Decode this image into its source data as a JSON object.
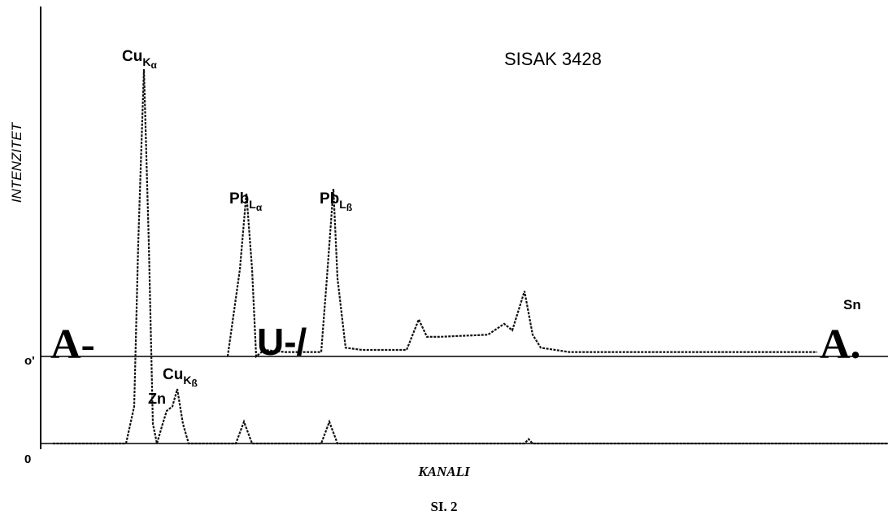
{
  "chart_data": {
    "type": "line",
    "title": "SISAK 3428",
    "ylabel": "INTENZITET",
    "xlabel": "KANALI",
    "caption": "SI. 2",
    "xlim": [
      0,
      1042
    ],
    "ylim": [
      0,
      100
    ],
    "yticks": [
      0,
      {
        "value": 20,
        "label": "o'"
      }
    ],
    "series": [
      {
        "color": "#111111",
        "x": [
          15,
          105,
          115,
          120,
          127,
          133,
          138,
          143,
          150,
          155,
          162,
          168,
          175,
          182,
          240,
          250,
          260,
          345,
          355,
          365,
          595,
          600,
          605,
          1042
        ],
        "values": [
          0,
          0,
          8.5,
          46,
          86,
          46,
          4.5,
          0,
          4.5,
          7.5,
          8.5,
          12.5,
          4.5,
          0,
          0,
          5,
          0,
          0,
          5,
          0,
          0,
          1,
          0,
          0
        ]
      },
      {
        "color": "#111111",
        "x": [
          230,
          245,
          253,
          260,
          265,
          275,
          300,
          345,
          352,
          360,
          365,
          375,
          395,
          450,
          465,
          475,
          490,
          550,
          570,
          580,
          595,
          605,
          615,
          650,
          750,
          955
        ],
        "values": [
          20,
          40,
          57.5,
          40,
          20,
          21.5,
          21,
          21,
          38,
          58.5,
          38,
          22,
          21.5,
          21.5,
          28.5,
          24.5,
          24.5,
          25,
          27.5,
          26,
          35,
          25,
          22,
          21,
          21,
          21
        ]
      }
    ],
    "annotations": [
      {
        "text": "Cu",
        "sub": "K",
        "subsub": "α"
      },
      {
        "text": "Pb",
        "sub": "L",
        "subsub": "α"
      },
      {
        "text": "Pb",
        "sub": "L",
        "subsub": "ß"
      },
      {
        "text": "Cu",
        "sub": "K",
        "subsub": "ß"
      },
      {
        "text": "Zn"
      },
      {
        "text": "Sn"
      },
      {
        "text": "A-"
      },
      {
        "text": "U-/"
      },
      {
        "text": "A."
      }
    ]
  }
}
